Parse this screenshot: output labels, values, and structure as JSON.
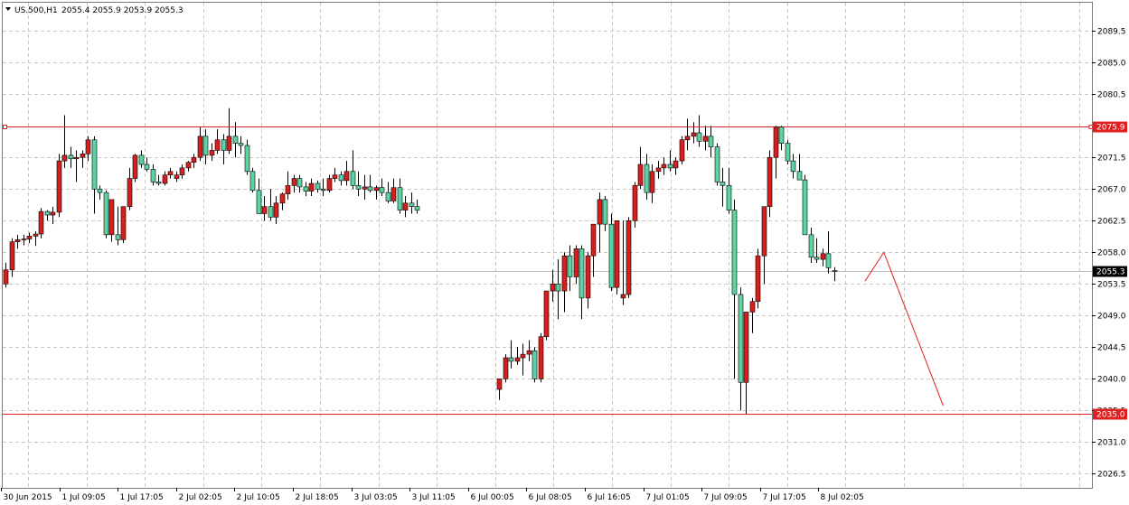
{
  "header": {
    "symbol_text": "US.500,H1",
    "ohlc_text": "2055.4 2055.9 2053.9 2055.3"
  },
  "colors": {
    "bull": "#5ed3a2",
    "bear": "#d61f1f",
    "outline": "#000000",
    "grid": "#c8c8c8",
    "line": "#e02020",
    "price_line": "#bdbdbd"
  },
  "chart_data": {
    "type": "candlestick",
    "title": "US.500,H1",
    "ylim": [
      2024.5,
      2093.5
    ],
    "y_ticks": [
      "2089.5",
      "2085.0",
      "2080.5",
      "2075.9",
      "2071.5",
      "2067.0",
      "2062.5",
      "2058.0",
      "2053.5",
      "2049.0",
      "2044.5",
      "2040.0",
      "2035.5",
      "2031.0",
      "2026.5"
    ],
    "x_ticks": [
      "30 Jun 2015",
      "1 Jul 09:05",
      "1 Jul 17:05",
      "2 Jul 02:05",
      "2 Jul 10:05",
      "2 Jul 18:05",
      "3 Jul 03:05",
      "3 Jul 11:05",
      "6 Jul 00:05",
      "6 Jul 08:05",
      "6 Jul 16:05",
      "7 Jul 01:05",
      "7 Jul 09:05",
      "7 Jul 17:05",
      "8 Jul 02:05"
    ],
    "levels": [
      {
        "value": 2075.9,
        "label": "2075.9"
      },
      {
        "value": 2035.0,
        "label": "2035.0"
      }
    ],
    "current_price": {
      "value": 2055.3,
      "label": "2055.3"
    },
    "projection": [
      [
        2053.9,
        2055.9
      ],
      [
        2058.0,
        2058.0
      ],
      [
        2036.2,
        2036.2
      ]
    ],
    "candles": [
      [
        2053.5,
        2056.5,
        2053.0,
        2055.5
      ],
      [
        2055.5,
        2060.0,
        2054.5,
        2059.5
      ],
      [
        2059.5,
        2060.5,
        2058.5,
        2059.8
      ],
      [
        2059.8,
        2060.5,
        2059.0,
        2059.9
      ],
      [
        2059.9,
        2060.8,
        2059.3,
        2060.3
      ],
      [
        2060.3,
        2061.0,
        2058.9,
        2060.6
      ],
      [
        2060.6,
        2064.3,
        2060.0,
        2063.8
      ],
      [
        2063.8,
        2064.0,
        2062.5,
        2063.3
      ],
      [
        2063.3,
        2064.5,
        2062.0,
        2063.7
      ],
      [
        2063.7,
        2072.0,
        2063.0,
        2071.0
      ],
      [
        2071.0,
        2077.5,
        2070.0,
        2071.8
      ],
      [
        2071.8,
        2073.0,
        2070.0,
        2071.3
      ],
      [
        2071.3,
        2072.5,
        2068.0,
        2071.5
      ],
      [
        2071.5,
        2072.5,
        2070.0,
        2072.0
      ],
      [
        2072.0,
        2074.5,
        2071.0,
        2074.0
      ],
      [
        2074.0,
        2074.5,
        2063.5,
        2067.0
      ],
      [
        2067.0,
        2067.5,
        2065.5,
        2066.5
      ],
      [
        2066.5,
        2066.8,
        2060.0,
        2060.5
      ],
      [
        2060.5,
        2063.0,
        2059.5,
        2065.5
      ],
      [
        2060.5,
        2064.5,
        2059.0,
        2059.8
      ],
      [
        2059.8,
        2063.5,
        2059.3,
        2064.5
      ],
      [
        2064.5,
        2070.0,
        2064.0,
        2068.5
      ],
      [
        2068.5,
        2072.0,
        2068.0,
        2071.8
      ],
      [
        2071.8,
        2072.5,
        2070.0,
        2070.5
      ],
      [
        2070.5,
        2071.5,
        2069.5,
        2069.8
      ],
      [
        2069.8,
        2070.5,
        2067.5,
        2068.0
      ],
      [
        2068.0,
        2069.0,
        2067.5,
        2067.8
      ],
      [
        2067.8,
        2069.5,
        2067.5,
        2069.0
      ],
      [
        2069.0,
        2070.0,
        2068.5,
        2069.5
      ],
      [
        2068.5,
        2069.5,
        2068.0,
        2069.0
      ],
      [
        2069.0,
        2070.5,
        2068.5,
        2070.0
      ],
      [
        2070.0,
        2071.0,
        2069.5,
        2070.8
      ],
      [
        2070.8,
        2072.0,
        2070.0,
        2071.5
      ],
      [
        2071.5,
        2075.8,
        2071.0,
        2074.5
      ],
      [
        2074.5,
        2075.5,
        2070.5,
        2071.8
      ],
      [
        2071.8,
        2073.5,
        2071.0,
        2072.5
      ],
      [
        2072.5,
        2075.5,
        2072.0,
        2074.0
      ],
      [
        2074.0,
        2074.8,
        2070.5,
        2072.5
      ],
      [
        2072.5,
        2078.5,
        2072.0,
        2074.5
      ],
      [
        2074.5,
        2076.5,
        2071.5,
        2073.5
      ],
      [
        2073.5,
        2074.5,
        2072.0,
        2073.2
      ],
      [
        2073.2,
        2074.0,
        2069.0,
        2069.5
      ],
      [
        2069.5,
        2070.0,
        2066.5,
        2066.8
      ],
      [
        2066.8,
        2068.5,
        2064.0,
        2063.5
      ],
      [
        2063.5,
        2066.0,
        2062.5,
        2064.5
      ],
      [
        2064.5,
        2067.0,
        2062.5,
        2063.0
      ],
      [
        2063.0,
        2066.0,
        2062.0,
        2065.0
      ],
      [
        2065.0,
        2066.5,
        2064.0,
        2066.3
      ],
      [
        2066.3,
        2069.5,
        2065.5,
        2067.5
      ],
      [
        2067.5,
        2069.0,
        2066.5,
        2068.5
      ],
      [
        2068.5,
        2069.0,
        2066.5,
        2067.3
      ],
      [
        2067.3,
        2068.0,
        2066.0,
        2066.7
      ],
      [
        2066.7,
        2068.5,
        2066.0,
        2067.8
      ],
      [
        2067.8,
        2068.2,
        2066.5,
        2067.0
      ],
      [
        2067.0,
        2068.5,
        2066.0,
        2066.8
      ],
      [
        2066.8,
        2069.0,
        2066.5,
        2068.5
      ],
      [
        2068.5,
        2070.0,
        2068.0,
        2069.0
      ],
      [
        2069.0,
        2069.5,
        2067.5,
        2068.2
      ],
      [
        2068.2,
        2071.0,
        2067.5,
        2069.5
      ],
      [
        2069.5,
        2072.5,
        2067.0,
        2067.5
      ],
      [
        2067.5,
        2069.5,
        2066.0,
        2067.0
      ],
      [
        2067.0,
        2069.0,
        2065.5,
        2067.3
      ],
      [
        2067.3,
        2069.0,
        2066.5,
        2066.8
      ],
      [
        2066.8,
        2067.5,
        2065.5,
        2067.2
      ],
      [
        2067.2,
        2068.5,
        2066.0,
        2066.5
      ],
      [
        2066.5,
        2068.0,
        2065.0,
        2065.3
      ],
      [
        2065.3,
        2068.5,
        2065.0,
        2067.2
      ],
      [
        2067.2,
        2068.5,
        2063.5,
        2064.0
      ],
      [
        2064.0,
        2066.0,
        2063.0,
        2065.0
      ],
      [
        2065.0,
        2066.5,
        2063.5,
        2064.5
      ],
      [
        2064.5,
        2065.5,
        2063.5,
        2064.0
      ],
      null,
      null,
      null,
      null,
      null,
      null,
      null,
      null,
      null,
      null,
      null,
      null,
      null,
      [
        2038.5,
        2039.5,
        2037.0,
        2040.0
      ],
      [
        2040.0,
        2043.5,
        2039.5,
        2043.0
      ],
      [
        2043.0,
        2045.5,
        2041.5,
        2042.5
      ],
      [
        2042.5,
        2044.5,
        2042.0,
        2043.0
      ],
      [
        2043.0,
        2045.0,
        2040.5,
        2043.5
      ],
      [
        2043.5,
        2045.5,
        2042.5,
        2044.0
      ],
      [
        2044.0,
        2044.5,
        2039.5,
        2040.0
      ],
      [
        2040.0,
        2046.5,
        2039.5,
        2046.0
      ],
      [
        2046.0,
        2052.0,
        2045.5,
        2052.5
      ],
      [
        2052.5,
        2055.5,
        2051.0,
        2053.5
      ],
      [
        2053.5,
        2057.0,
        2048.5,
        2052.5
      ],
      [
        2052.5,
        2058.0,
        2049.5,
        2057.5
      ],
      [
        2057.5,
        2059.0,
        2052.5,
        2054.5
      ],
      [
        2054.5,
        2059.0,
        2053.5,
        2058.5
      ],
      [
        2058.5,
        2059.0,
        2048.5,
        2051.5
      ],
      [
        2051.5,
        2058.0,
        2050.0,
        2057.5
      ],
      [
        2057.5,
        2062.0,
        2054.5,
        2062.0
      ],
      [
        2062.0,
        2066.5,
        2058.0,
        2065.5
      ],
      [
        2065.5,
        2066.0,
        2061.0,
        2062.0
      ],
      [
        2062.0,
        2063.5,
        2052.5,
        2053.0
      ],
      [
        2053.0,
        2061.5,
        2052.0,
        2062.5
      ],
      [
        2051.5,
        2062.5,
        2050.5,
        2052.0
      ],
      [
        2052.0,
        2063.0,
        2051.5,
        2062.5
      ],
      [
        2062.5,
        2068.0,
        2061.5,
        2067.5
      ],
      [
        2067.5,
        2073.0,
        2067.0,
        2070.5
      ],
      [
        2070.5,
        2072.0,
        2065.5,
        2066.5
      ],
      [
        2066.5,
        2070.5,
        2065.0,
        2069.5
      ],
      [
        2069.5,
        2071.0,
        2068.5,
        2070.0
      ],
      [
        2070.0,
        2071.5,
        2069.0,
        2070.5
      ],
      [
        2070.5,
        2072.5,
        2069.5,
        2070.0
      ],
      [
        2070.0,
        2071.5,
        2069.0,
        2071.0
      ],
      [
        2071.0,
        2074.5,
        2070.5,
        2074.0
      ],
      [
        2074.0,
        2077.0,
        2072.5,
        2074.5
      ],
      [
        2074.5,
        2076.5,
        2073.5,
        2075.0
      ],
      [
        2075.0,
        2077.5,
        2073.0,
        2073.8
      ],
      [
        2073.8,
        2076.0,
        2072.5,
        2074.5
      ],
      [
        2074.5,
        2076.0,
        2071.5,
        2073.0
      ],
      [
        2073.0,
        2073.5,
        2067.5,
        2068.0
      ],
      [
        2068.0,
        2070.0,
        2064.5,
        2067.5
      ],
      [
        2067.5,
        2070.0,
        2063.5,
        2064.0
      ],
      [
        2064.0,
        2065.5,
        2040.0,
        2052.0
      ],
      [
        2052.0,
        2053.0,
        2035.5,
        2039.5
      ],
      [
        2039.5,
        2041.0,
        2035.0,
        2049.5
      ],
      [
        2049.5,
        2051.5,
        2046.5,
        2051.0
      ],
      [
        2051.0,
        2058.5,
        2050.0,
        2057.5
      ],
      [
        2057.5,
        2064.0,
        2053.5,
        2064.5
      ],
      [
        2064.5,
        2072.5,
        2063.0,
        2071.5
      ],
      [
        2071.5,
        2076.0,
        2068.5,
        2075.8
      ],
      [
        2075.8,
        2076.0,
        2072.5,
        2073.5
      ],
      [
        2073.5,
        2074.0,
        2070.5,
        2071.0
      ],
      [
        2071.0,
        2072.0,
        2068.5,
        2069.5
      ],
      [
        2069.5,
        2072.0,
        2068.5,
        2068.3
      ],
      [
        2068.3,
        2069.0,
        2060.5,
        2060.5
      ],
      [
        2060.5,
        2061.5,
        2056.5,
        2057.3
      ],
      [
        2057.3,
        2060.0,
        2056.5,
        2057.0
      ],
      [
        2057.0,
        2058.5,
        2056.0,
        2057.8
      ],
      [
        2057.8,
        2061.0,
        2055.0,
        2055.8
      ],
      [
        2055.4,
        2055.9,
        2053.9,
        2055.3
      ]
    ]
  }
}
